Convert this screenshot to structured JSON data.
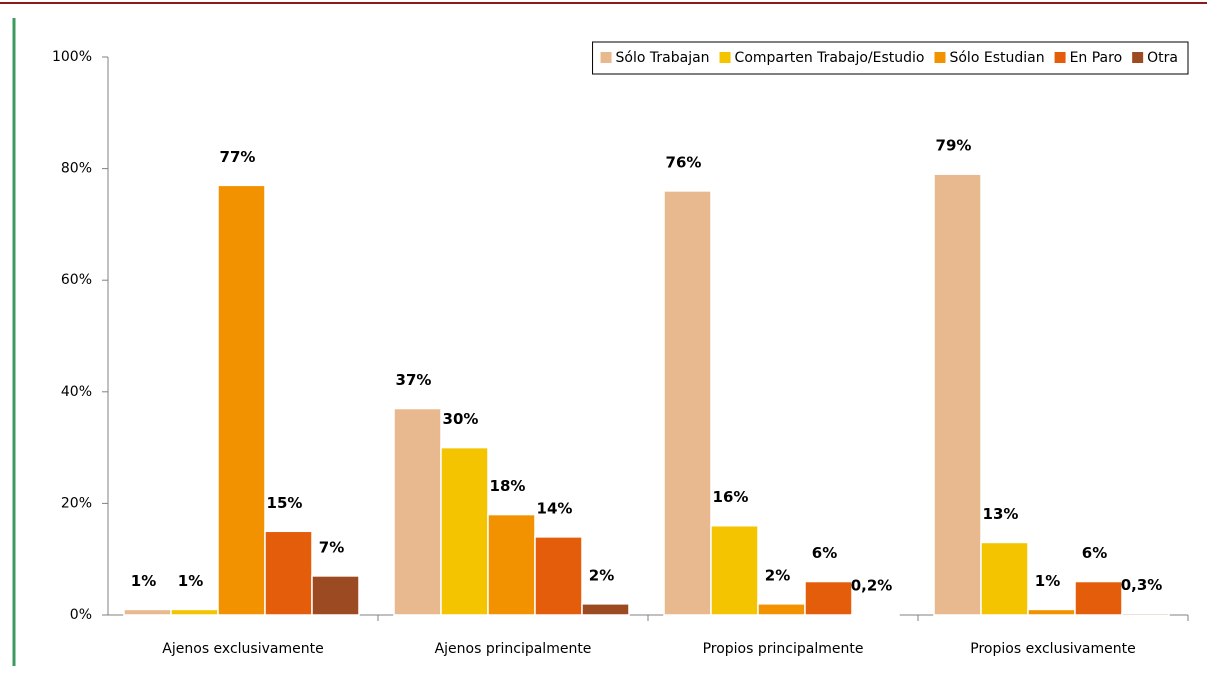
{
  "chart_data": {
    "type": "bar",
    "categories": [
      "Ajenos exclusivamente",
      "Ajenos principalmente",
      "Propios principalmente",
      "Propios exclusivamente"
    ],
    "series": [
      {
        "name": "Sólo Trabajan",
        "color": "#e8b98f",
        "values": [
          1,
          37,
          76,
          79
        ],
        "value_labels": [
          "1%",
          "37%",
          "76%",
          "79%"
        ]
      },
      {
        "name": "Comparten Trabajo/Estudio",
        "color": "#f5c400",
        "values": [
          1,
          30,
          16,
          13
        ],
        "value_labels": [
          "1%",
          "30%",
          "16%",
          "13%"
        ]
      },
      {
        "name": "Sólo Estudian",
        "color": "#f39200",
        "values": [
          77,
          18,
          2,
          1
        ],
        "value_labels": [
          "77%",
          "18%",
          "2%",
          "1%"
        ]
      },
      {
        "name": "En Paro",
        "color": "#e35d0b",
        "values": [
          15,
          14,
          6,
          6
        ],
        "value_labels": [
          "15%",
          "14%",
          "6%",
          "6%"
        ]
      },
      {
        "name": "Otra",
        "color": "#9c4a22",
        "values": [
          7,
          2,
          0.2,
          0.3
        ],
        "value_labels": [
          "7%",
          "2%",
          "0,2%",
          "0,3%"
        ]
      }
    ],
    "ylim": [
      0,
      100
    ],
    "yticks": [
      {
        "value": 0,
        "label": "0%"
      },
      {
        "value": 20,
        "label": "20%"
      },
      {
        "value": 40,
        "label": "40%"
      },
      {
        "value": 60,
        "label": "60%"
      },
      {
        "value": 80,
        "label": "80%"
      },
      {
        "value": 100,
        "label": "100%"
      }
    ],
    "legend": "top-right",
    "grid": false
  }
}
